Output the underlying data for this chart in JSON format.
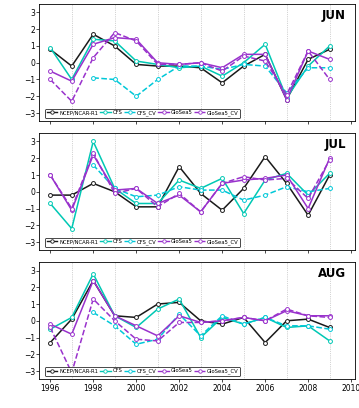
{
  "years": [
    1996,
    1997,
    1998,
    1999,
    2000,
    2001,
    2002,
    2003,
    2004,
    2005,
    2006,
    2007,
    2008,
    2009
  ],
  "JUN": {
    "NCEP": [
      0.8,
      -0.2,
      1.7,
      1.0,
      -0.1,
      -0.2,
      -0.2,
      -0.3,
      -1.2,
      -0.2,
      0.5,
      -2.2,
      0.2,
      0.8
    ],
    "CFS": [
      0.9,
      -1.0,
      1.4,
      1.3,
      0.1,
      -0.1,
      -0.3,
      -0.2,
      -0.8,
      0.0,
      1.1,
      -2.1,
      -0.2,
      1.0
    ],
    "CFS_CV": [
      null,
      null,
      -0.9,
      -1.0,
      -2.0,
      -1.0,
      -0.2,
      -0.2,
      -0.4,
      -0.1,
      -0.2,
      -1.8,
      -0.3,
      -0.3
    ],
    "GloSea5": [
      -0.5,
      -1.1,
      1.1,
      1.5,
      1.4,
      0.0,
      -0.1,
      0.0,
      -0.3,
      0.5,
      0.5,
      -2.2,
      0.7,
      0.2
    ],
    "GloSea5_CV": [
      -1.0,
      -2.3,
      0.3,
      1.8,
      1.3,
      -0.1,
      -0.1,
      0.0,
      -0.5,
      0.4,
      0.1,
      -1.9,
      0.7,
      -1.0
    ]
  },
  "JUL": {
    "NCEP": [
      -0.2,
      -0.2,
      0.5,
      0.0,
      -0.9,
      -0.9,
      1.5,
      -0.1,
      -1.1,
      0.2,
      2.1,
      0.5,
      -1.4,
      1.0
    ],
    "CFS": [
      -0.7,
      -2.2,
      3.0,
      0.2,
      -0.7,
      -0.7,
      0.7,
      0.2,
      0.8,
      -1.3,
      0.7,
      1.1,
      -0.2,
      1.1
    ],
    "CFS_CV": [
      null,
      null,
      1.6,
      0.2,
      -0.3,
      -0.2,
      0.3,
      0.1,
      0.1,
      -0.5,
      -0.2,
      0.3,
      0.0,
      0.2
    ],
    "GloSea5": [
      1.0,
      -1.1,
      2.2,
      0.1,
      0.2,
      -0.7,
      -0.2,
      -1.2,
      0.5,
      0.7,
      0.8,
      1.0,
      -1.0,
      2.0
    ],
    "GloSea5_CV": [
      1.0,
      -1.0,
      2.3,
      -0.1,
      0.2,
      -0.9,
      -0.1,
      -1.2,
      0.5,
      0.9,
      0.7,
      0.8,
      -0.4,
      1.9
    ]
  },
  "AUG": {
    "NCEP": [
      -1.3,
      0.1,
      2.4,
      0.3,
      0.2,
      1.0,
      1.1,
      0.0,
      -0.2,
      0.2,
      -1.3,
      0.0,
      0.1,
      -0.4
    ],
    "CFS": [
      -0.5,
      0.2,
      2.8,
      0.3,
      -0.4,
      0.7,
      1.3,
      -1.0,
      0.2,
      -0.2,
      0.2,
      -0.4,
      -0.3,
      -1.2
    ],
    "CFS_CV": [
      null,
      null,
      0.5,
      -0.3,
      -1.4,
      -1.1,
      0.4,
      -0.9,
      0.3,
      -0.2,
      0.2,
      -0.3,
      -0.3,
      -0.5
    ],
    "GloSea5": [
      -0.2,
      -0.8,
      2.4,
      0.3,
      -0.3,
      -0.9,
      0.3,
      -0.1,
      0.0,
      0.2,
      0.0,
      0.6,
      0.3,
      0.3
    ],
    "GloSea5_CV": [
      -0.4,
      -3.1,
      1.3,
      0.0,
      -1.1,
      -1.2,
      -0.1,
      -0.1,
      0.0,
      0.2,
      0.0,
      0.7,
      0.3,
      0.2
    ]
  },
  "colors": {
    "NCEP": "#1a1a1a",
    "CFS": "#00c8b4",
    "CFS_CV": "#00c8d8",
    "GloSea5": "#9932CC",
    "GloSea5_CV": "#9932CC"
  },
  "linestyles": {
    "NCEP": "-",
    "CFS": "-",
    "CFS_CV": "--",
    "GloSea5": "-",
    "GloSea5_CV": "--"
  },
  "legend_labels": {
    "NCEP": "NCEP/NCAR-R1",
    "CFS": "CFS",
    "CFS_CV": "CFS_CV",
    "GloSea5": "GloSea5",
    "GloSea5_CV": "GloSea5_CV"
  },
  "panels": [
    "JUN",
    "JUL",
    "AUG"
  ],
  "ylim": [
    -3.5,
    3.5
  ],
  "yticks": [
    -3,
    -2,
    -1,
    0,
    1,
    2,
    3
  ],
  "xlim": [
    1995.5,
    2010.2
  ],
  "xticks": [
    1996,
    1998,
    2000,
    2002,
    2004,
    2006,
    2008,
    2010
  ],
  "vgrid_x": [
    1997,
    1999,
    2001,
    2003,
    2005,
    2007,
    2009
  ],
  "bg_color": "#ffffff",
  "panel_bg": "#ffffff"
}
